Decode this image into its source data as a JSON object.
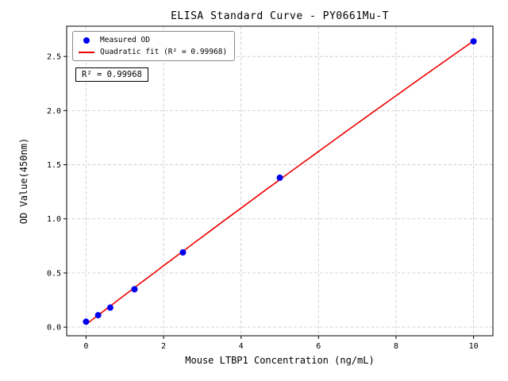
{
  "chart_data": {
    "type": "scatter",
    "title": "ELISA Standard Curve - PY0661Mu-T",
    "xlabel": "Mouse LTBP1 Concentration (ng/mL)",
    "ylabel": "OD Value(450nm)",
    "xlim": [
      -0.5,
      10.5
    ],
    "ylim": [
      -0.08,
      2.78
    ],
    "x_ticks": [
      0,
      2,
      4,
      6,
      8,
      10
    ],
    "x_tick_labels": [
      "0",
      "2",
      "4",
      "6",
      "8",
      "10"
    ],
    "y_ticks": [
      0,
      0.5,
      1,
      1.5,
      2,
      2.5
    ],
    "y_tick_labels": [
      "0.0",
      "0.5",
      "1.0",
      "1.5",
      "2.0",
      "2.5"
    ],
    "grid": true,
    "grid_style": "dashed",
    "legend_position": "upper-left",
    "series": [
      {
        "name": "Measured OD",
        "type": "scatter",
        "color": "#0000ee",
        "x": [
          0,
          0.3125,
          0.625,
          1.25,
          2.5,
          5,
          10
        ],
        "y": [
          0.05,
          0.11,
          0.18,
          0.35,
          0.69,
          1.38,
          2.64
        ]
      },
      {
        "name": "Quadratic fit (R² = 0.99968)",
        "type": "line",
        "fit": "quadratic",
        "r_squared": 0.99968,
        "color": "#ee0000"
      }
    ],
    "annotation": {
      "text": "R² = 0.99968"
    },
    "colors": {
      "axis": "#000000",
      "grid": "#c8c8c8",
      "background": "#ffffff"
    }
  }
}
